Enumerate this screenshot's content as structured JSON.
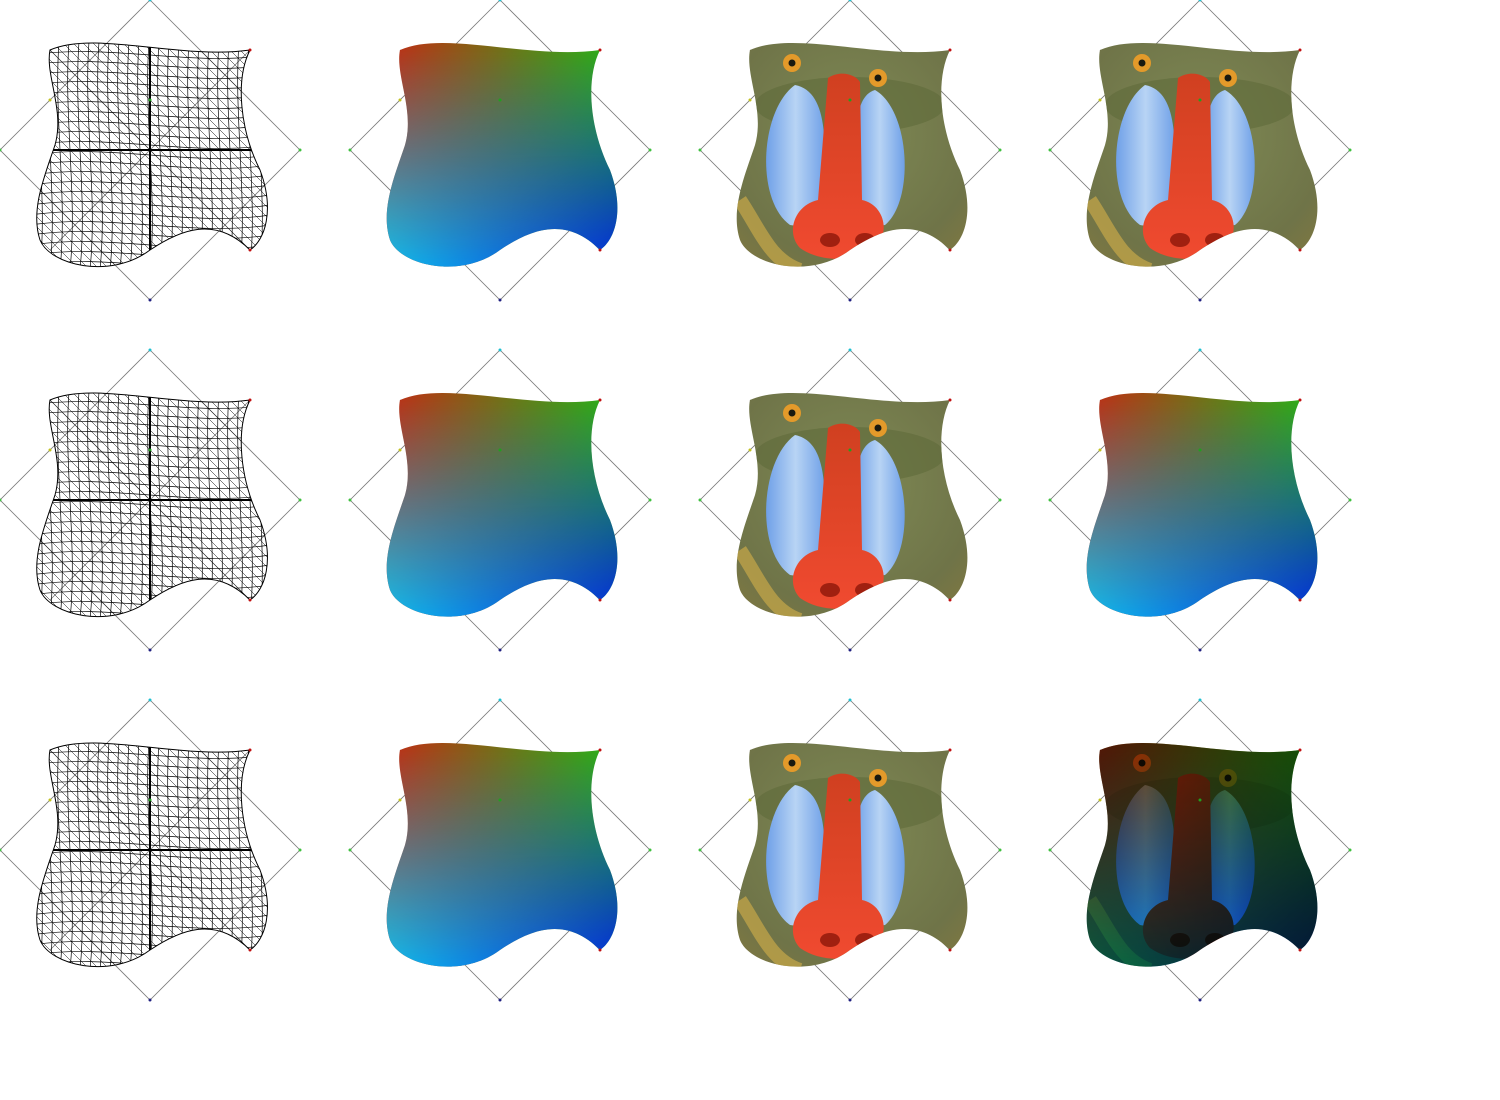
{
  "grid": {
    "rows": 3,
    "cols": 4,
    "cells": [
      [
        "wireframe",
        "gradient",
        "texture",
        "texture"
      ],
      [
        "wireframe",
        "gradient",
        "texture",
        "gradient"
      ],
      [
        "wireframe",
        "gradient",
        "texture",
        "modulated"
      ]
    ]
  },
  "colors": {
    "background": "#ffffff",
    "corner_top_left": "#e01010",
    "corner_top_right": "#10d010",
    "corner_bottom_left": "#10d8f0",
    "corner_bottom_right": "#0010e0",
    "control_lines": "#7a7a7a",
    "wire": "#000000"
  },
  "control_points": [
    {
      "name": "top",
      "color": "#20c0d0"
    },
    {
      "name": "left",
      "color": "#40c040"
    },
    {
      "name": "right",
      "color": "#40c040"
    },
    {
      "name": "bottom",
      "color": "#202080"
    },
    {
      "name": "inner-top-left",
      "color": "#c0c020"
    },
    {
      "name": "inner-top-right",
      "color": "#20a020"
    },
    {
      "name": "corner-bottom-right",
      "color": "#c01010"
    }
  ]
}
